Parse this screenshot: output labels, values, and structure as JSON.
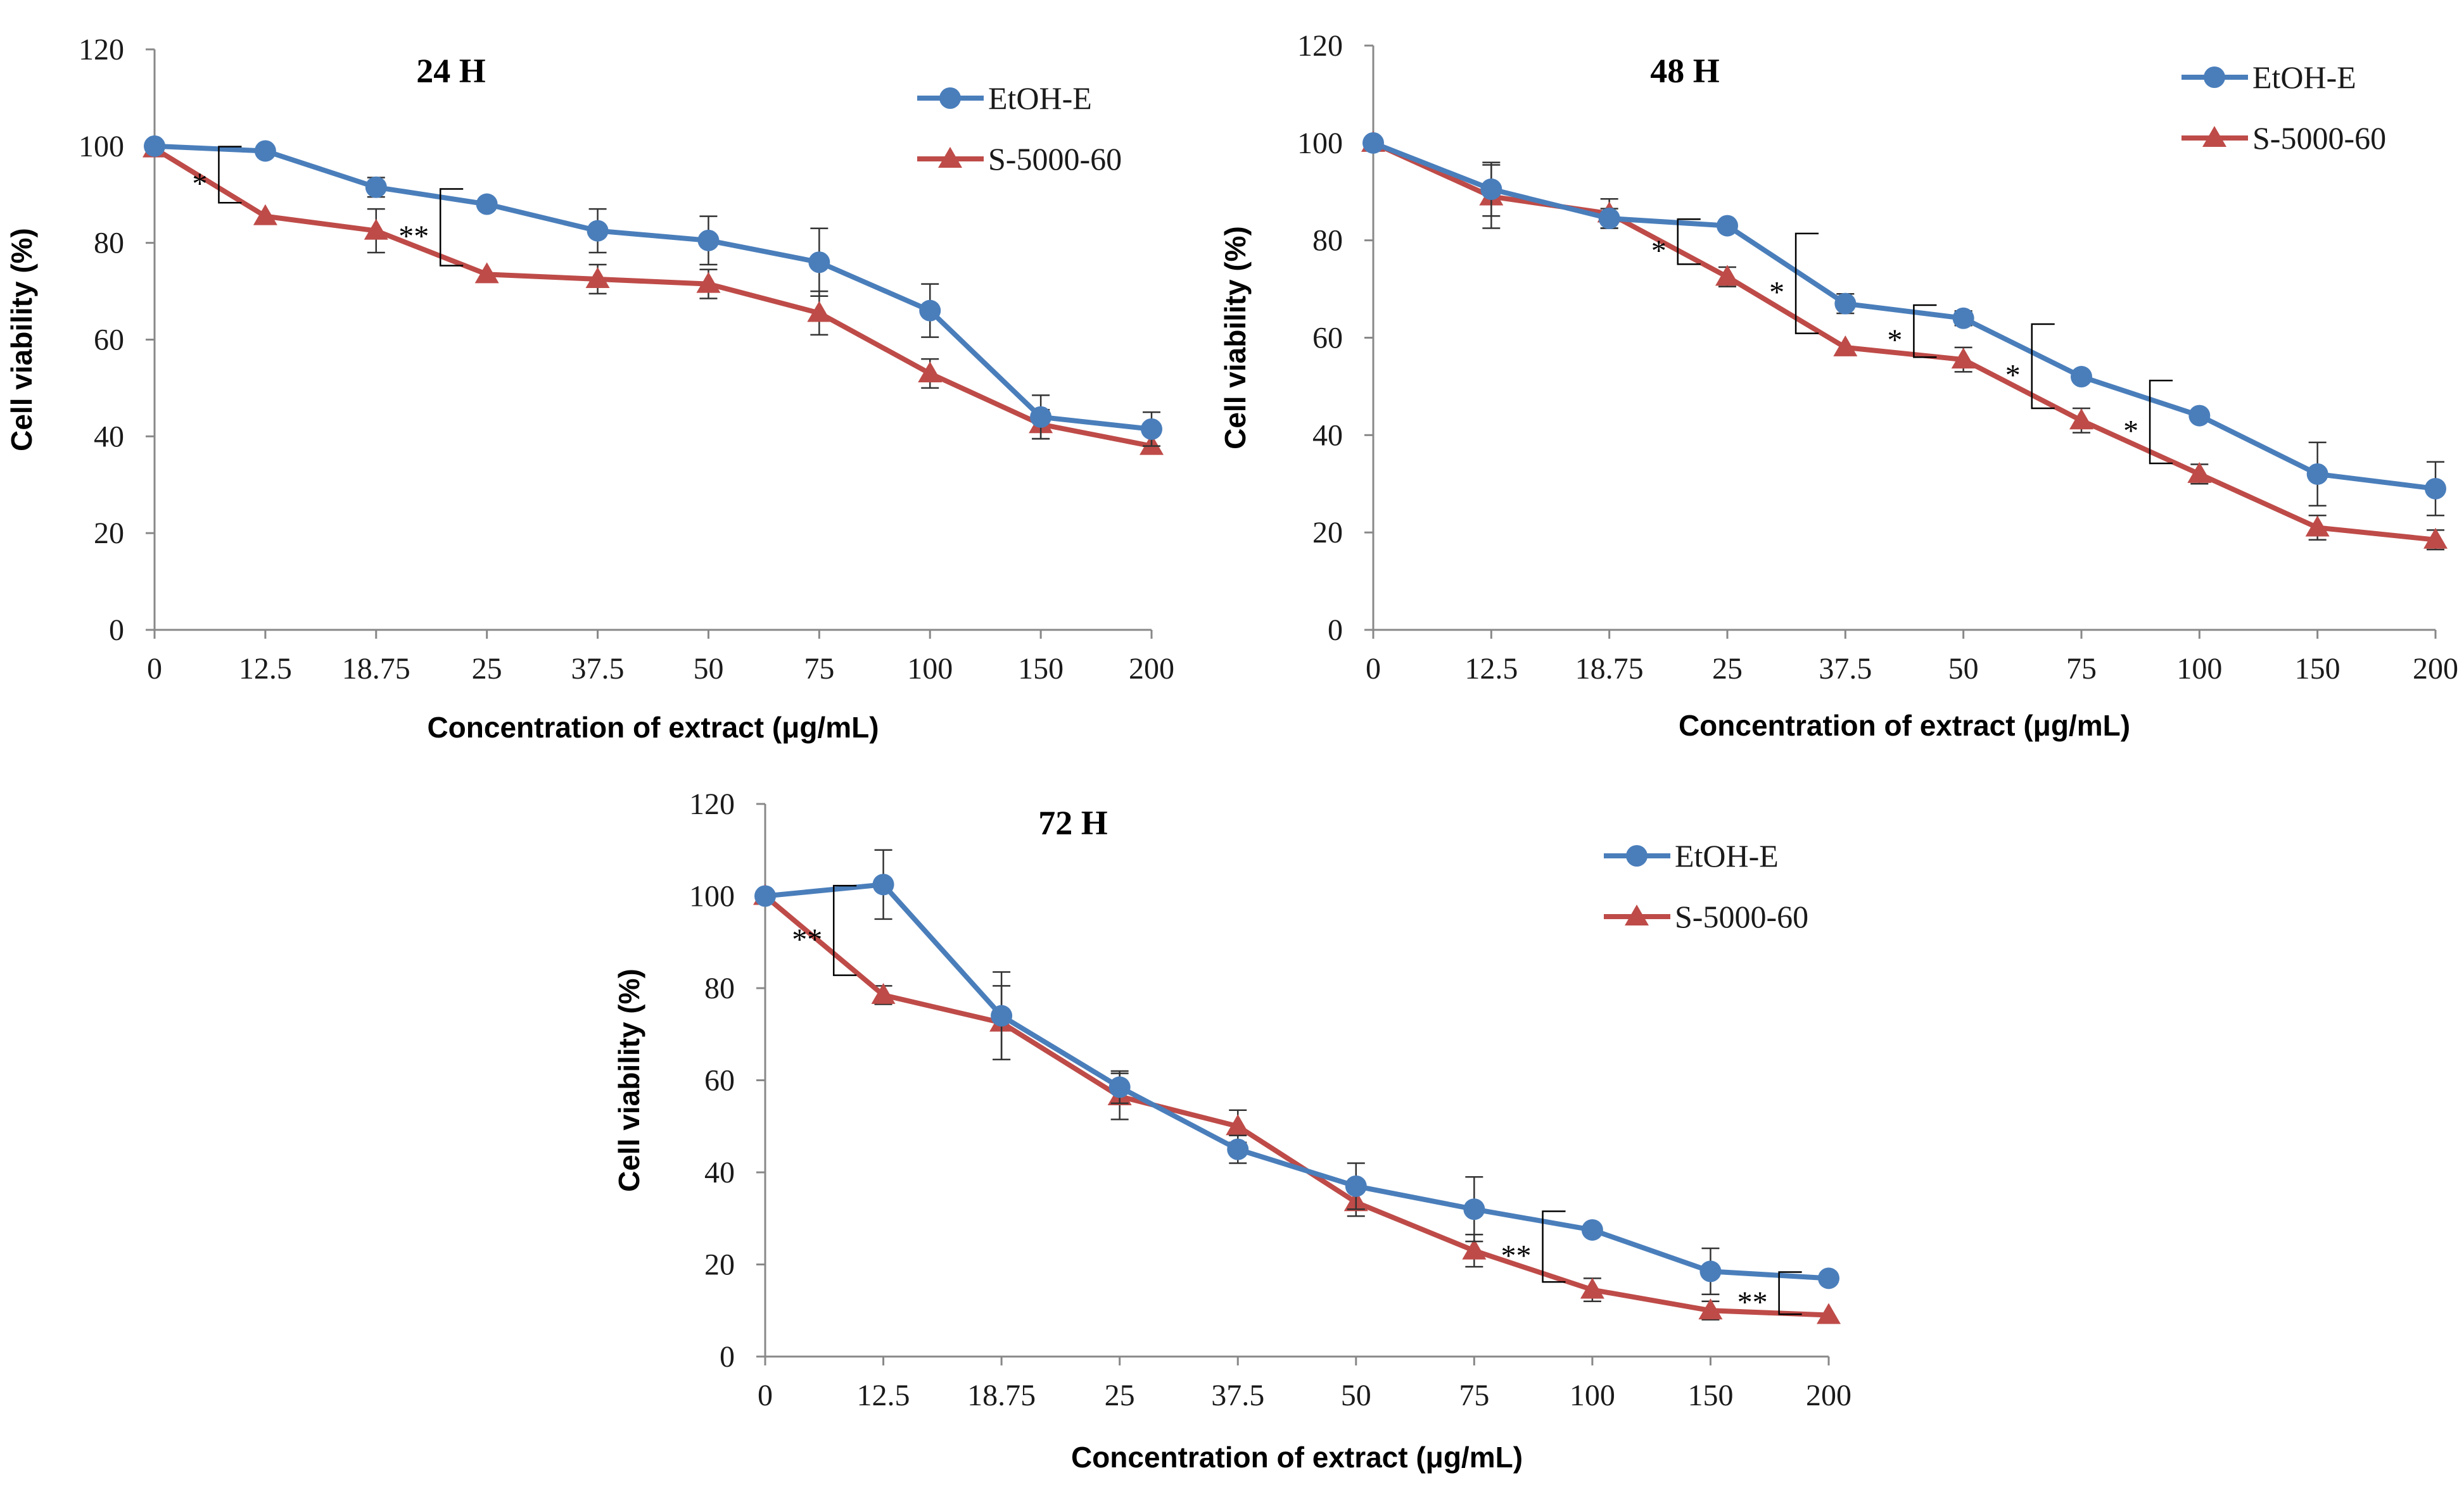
{
  "colors": {
    "etoh": "#4A7EBB",
    "s5000": "#BE4B48",
    "axis": "#888888",
    "bracket": "#000000"
  },
  "chart_data": [
    {
      "type": "line",
      "title": "24 H",
      "xlabel": "Concentration of extract (μg/mL)",
      "ylabel": "Cell viability (%)",
      "ylim": [
        0,
        120
      ],
      "yticks": [
        "0",
        "20",
        "40",
        "60",
        "80",
        "100",
        "120"
      ],
      "categories": [
        "0",
        "12.5",
        "18.75",
        "25",
        "37.5",
        "50",
        "75",
        "100",
        "150",
        "200"
      ],
      "legend": "top-right",
      "series": [
        {
          "name": "EtOH-E",
          "marker": "circle",
          "values": [
            100,
            99,
            91.5,
            88,
            82.5,
            80.5,
            76,
            66,
            44,
            41.5
          ],
          "errors": [
            0,
            0,
            2,
            0,
            4.5,
            5,
            7,
            5.5,
            4.5,
            3.5
          ]
        },
        {
          "name": "S-5000-60",
          "marker": "triangle",
          "values": [
            99.5,
            85.5,
            82.5,
            73.5,
            72.5,
            71.5,
            65.5,
            53,
            42.5,
            38
          ],
          "errors": [
            0,
            0,
            4.5,
            0,
            3,
            3,
            4.5,
            3,
            3,
            0
          ]
        }
      ],
      "significance": [
        {
          "label": "*",
          "between": [
            0,
            1
          ]
        },
        {
          "label": "**",
          "between": [
            2,
            3
          ]
        }
      ]
    },
    {
      "type": "line",
      "title": "48 H",
      "xlabel": "Concentration of extract (μg/mL)",
      "ylabel": "Cell viability (%)",
      "ylim": [
        0,
        120
      ],
      "yticks": [
        "0",
        "20",
        "40",
        "60",
        "80",
        "100",
        "120"
      ],
      "categories": [
        "0",
        "12.5",
        "18.75",
        "25",
        "37.5",
        "50",
        "75",
        "100",
        "150",
        "200"
      ],
      "legend": "top-right",
      "series": [
        {
          "name": "EtOH-E",
          "marker": "circle",
          "values": [
            100,
            90.5,
            84.5,
            83,
            67,
            64,
            52,
            44,
            32,
            29
          ],
          "errors": [
            0,
            5.5,
            2,
            1,
            2,
            1.5,
            0,
            0,
            6.5,
            5.5
          ]
        },
        {
          "name": "S-5000-60",
          "marker": "triangle",
          "values": [
            100,
            89,
            85.5,
            72.5,
            58,
            55.5,
            43,
            32,
            21,
            18.5
          ],
          "errors": [
            0,
            6.5,
            3,
            2,
            0,
            2.5,
            2.5,
            2,
            2.5,
            2
          ]
        }
      ],
      "significance": [
        {
          "label": "*",
          "between": [
            2,
            3
          ]
        },
        {
          "label": "*",
          "between": [
            3,
            4
          ]
        },
        {
          "label": "*",
          "between": [
            4,
            5
          ]
        },
        {
          "label": "*",
          "between": [
            5,
            6
          ]
        },
        {
          "label": "*",
          "between": [
            6,
            7
          ]
        }
      ]
    },
    {
      "type": "line",
      "title": "72 H",
      "xlabel": "Concentration of extract (μg/mL)",
      "ylabel": "Cell viability (%)",
      "ylim": [
        0,
        120
      ],
      "yticks": [
        "0",
        "20",
        "40",
        "60",
        "80",
        "100",
        "120"
      ],
      "categories": [
        "0",
        "12.5",
        "18.75",
        "25",
        "37.5",
        "50",
        "75",
        "100",
        "150",
        "200"
      ],
      "legend": "top-right",
      "series": [
        {
          "name": "EtOH-E",
          "marker": "circle",
          "values": [
            100,
            102.5,
            74,
            58.5,
            45,
            37,
            32,
            27.5,
            18.5,
            17
          ],
          "errors": [
            0,
            7.5,
            9.5,
            3.5,
            3,
            5,
            7,
            0,
            5,
            0
          ]
        },
        {
          "name": "S-5000-60",
          "marker": "triangle",
          "values": [
            100,
            78.5,
            72.5,
            56.5,
            50,
            33.5,
            23,
            14.5,
            10,
            9
          ],
          "errors": [
            0,
            2,
            8,
            5,
            3.5,
            3,
            3.5,
            2.5,
            2,
            0
          ]
        }
      ],
      "significance": [
        {
          "label": "**",
          "between": [
            0,
            1
          ]
        },
        {
          "label": "**",
          "between": [
            6,
            7
          ]
        },
        {
          "label": "**",
          "between": [
            8,
            9
          ]
        }
      ]
    }
  ]
}
